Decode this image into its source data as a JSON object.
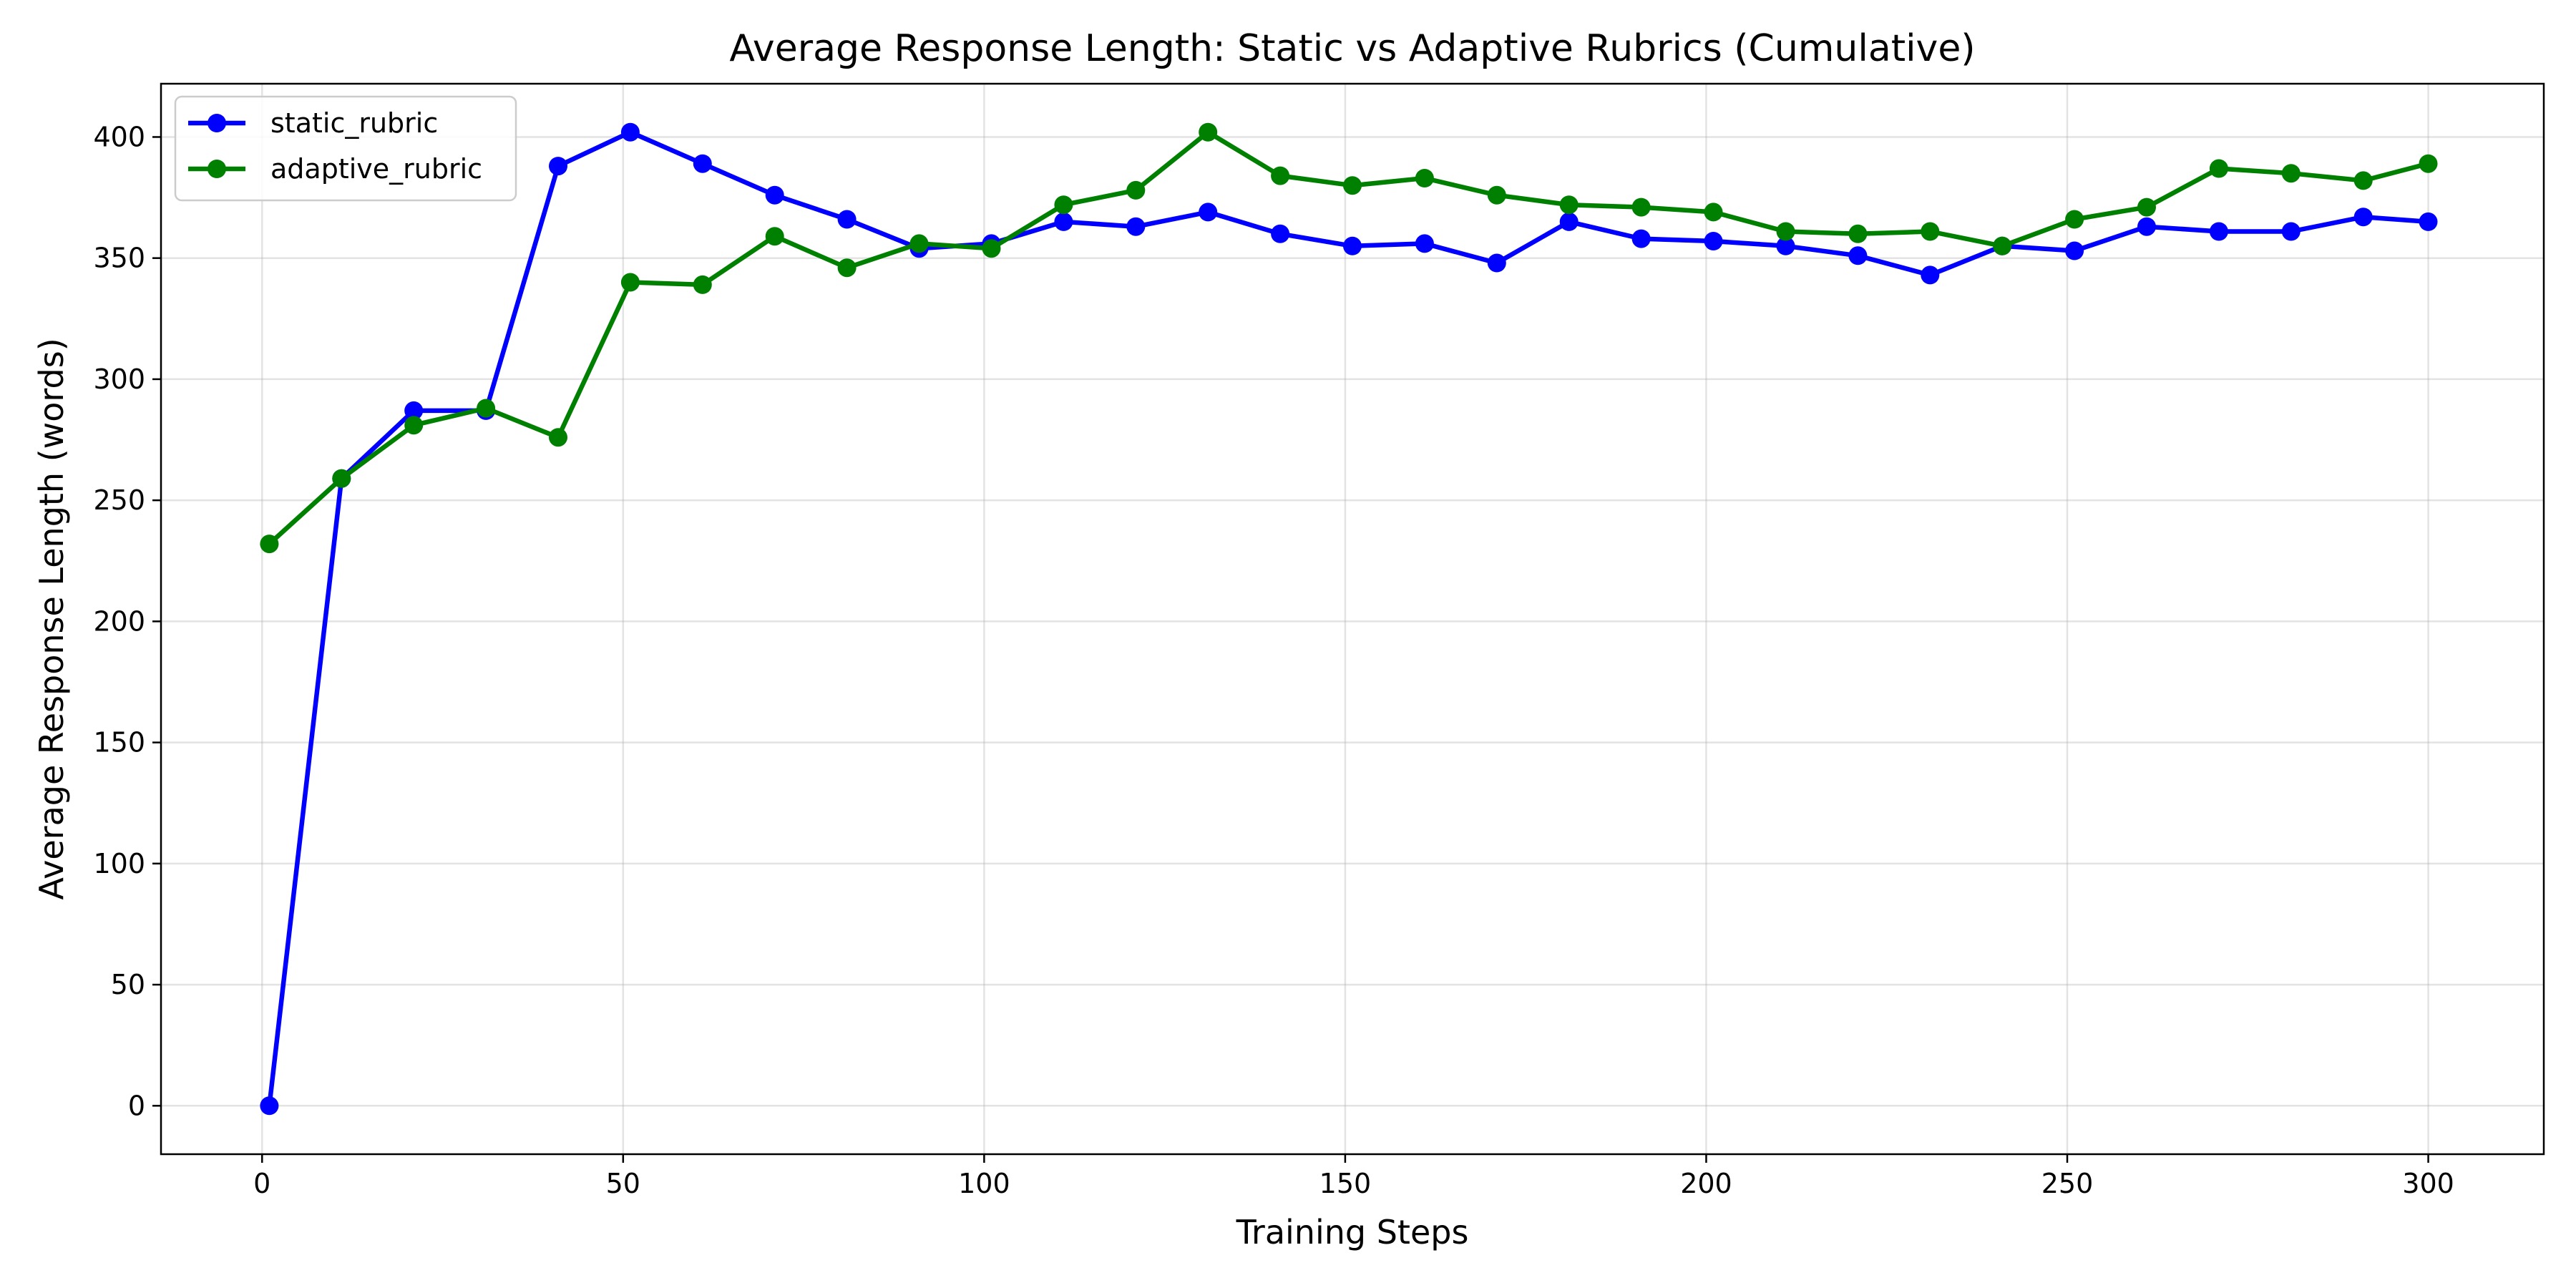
{
  "chart_data": {
    "type": "line",
    "title": "Average Response Length: Static vs Adaptive Rubrics (Cumulative)",
    "xlabel": "Training Steps",
    "ylabel": "Average Response Length (words)",
    "xlim": [
      -14,
      316
    ],
    "ylim": [
      -20,
      422
    ],
    "xticks": [
      0,
      50,
      100,
      150,
      200,
      250,
      300
    ],
    "yticks": [
      0,
      50,
      100,
      150,
      200,
      250,
      300,
      350,
      400
    ],
    "grid": true,
    "legend_position": "upper-left",
    "x": [
      1,
      11,
      21,
      31,
      41,
      51,
      61,
      71,
      81,
      91,
      101,
      111,
      121,
      131,
      141,
      151,
      161,
      171,
      181,
      191,
      201,
      211,
      221,
      231,
      241,
      251,
      261,
      271,
      281,
      291,
      300
    ],
    "series": [
      {
        "name": "static_rubric",
        "color": "#0000ff",
        "marker": "circle",
        "values": [
          0,
          259,
          287,
          287,
          388,
          402,
          389,
          376,
          366,
          354,
          356,
          365,
          363,
          369,
          360,
          355,
          356,
          348,
          365,
          358,
          357,
          355,
          351,
          343,
          355,
          353,
          363,
          361,
          361,
          367,
          365
        ]
      },
      {
        "name": "adaptive_rubric",
        "color": "#008000",
        "marker": "circle",
        "values": [
          232,
          259,
          281,
          288,
          276,
          340,
          339,
          359,
          346,
          356,
          354,
          372,
          378,
          402,
          384,
          380,
          383,
          376,
          372,
          371,
          369,
          361,
          360,
          361,
          355,
          366,
          371,
          387,
          385,
          382,
          389
        ]
      }
    ]
  }
}
